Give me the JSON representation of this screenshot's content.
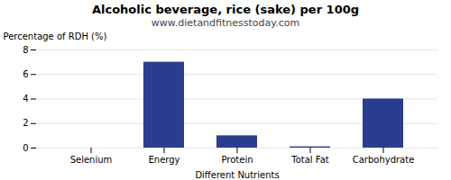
{
  "chart_data": {
    "type": "bar",
    "title": "Alcoholic beverage, rice (sake) per 100g",
    "subtitle": "www.dietandfitnesstoday.com",
    "xlabel": "Different Nutrients",
    "ylabel": "Percentage of RDH (%)",
    "categories": [
      "Selenium",
      "Energy",
      "Protein",
      "Total Fat",
      "Carbohydrate"
    ],
    "values": [
      0,
      7,
      1,
      0.1,
      4
    ],
    "color": "#2b3d8f",
    "ylim": [
      0,
      8
    ],
    "yticks": [
      0,
      2,
      4,
      6,
      8
    ],
    "grid": true
  }
}
